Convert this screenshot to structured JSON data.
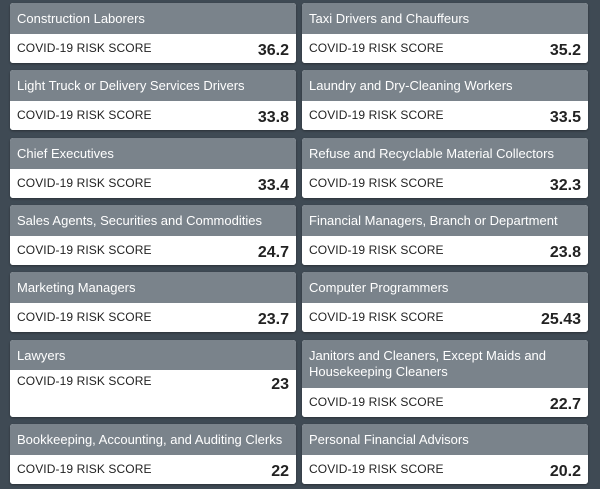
{
  "score_label": "COVID-19 RISK SCORE",
  "cards": [
    {
      "title": "Construction Laborers",
      "score": "36.2"
    },
    {
      "title": "Taxi Drivers and Chauffeurs",
      "score": "35.2"
    },
    {
      "title": "Light Truck or Delivery Services Drivers",
      "score": "33.8"
    },
    {
      "title": "Laundry and Dry-Cleaning Workers",
      "score": "33.5"
    },
    {
      "title": "Chief Executives",
      "score": "33.4"
    },
    {
      "title": "Refuse and Recyclable Material Collectors",
      "score": "32.3"
    },
    {
      "title": "Sales Agents, Securities and Commodities",
      "score": "24.7"
    },
    {
      "title": "Financial Managers, Branch or Department",
      "score": "23.8"
    },
    {
      "title": "Marketing Managers",
      "score": "23.7"
    },
    {
      "title": "Computer Programmers",
      "score": "25.43"
    },
    {
      "title": "Lawyers",
      "score": "23"
    },
    {
      "title": "Janitors and Cleaners, Except Maids and Housekeeping Cleaners",
      "score": "22.7"
    },
    {
      "title": "Bookkeeping, Accounting, and Auditing Clerks",
      "score": "22"
    },
    {
      "title": "Personal Financial Advisors",
      "score": "20.2"
    }
  ]
}
